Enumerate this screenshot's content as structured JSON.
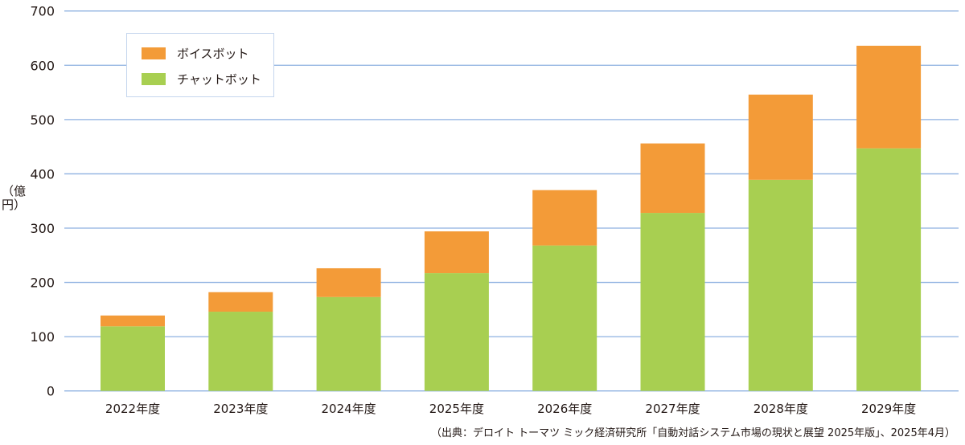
{
  "chart_data": {
    "type": "bar",
    "stacked": true,
    "categories": [
      "2022年度",
      "2023年度",
      "2024年度",
      "2025年度",
      "2026年度",
      "2027年度",
      "2028年度",
      "2029年度"
    ],
    "series": [
      {
        "name": "チャットボット",
        "color": "#a8cf51",
        "values": [
          119,
          146,
          173,
          217,
          268,
          328,
          389,
          447
        ]
      },
      {
        "name": "ボイスボット",
        "color": "#f39b38",
        "values": [
          20,
          36,
          53,
          77,
          102,
          128,
          157,
          189
        ]
      }
    ],
    "ylabel": "（億円）",
    "ylim": [
      0,
      700
    ],
    "yticks": [
      0,
      100,
      200,
      300,
      400,
      500,
      600,
      700
    ],
    "grid": true,
    "gridColor": "#8db0e0",
    "legend": "top-left",
    "source": "（出典：デロイト トーマツ ミック経済研究所「自動対話システム市場の現状と展望 2025年版」、2025年4月）"
  }
}
